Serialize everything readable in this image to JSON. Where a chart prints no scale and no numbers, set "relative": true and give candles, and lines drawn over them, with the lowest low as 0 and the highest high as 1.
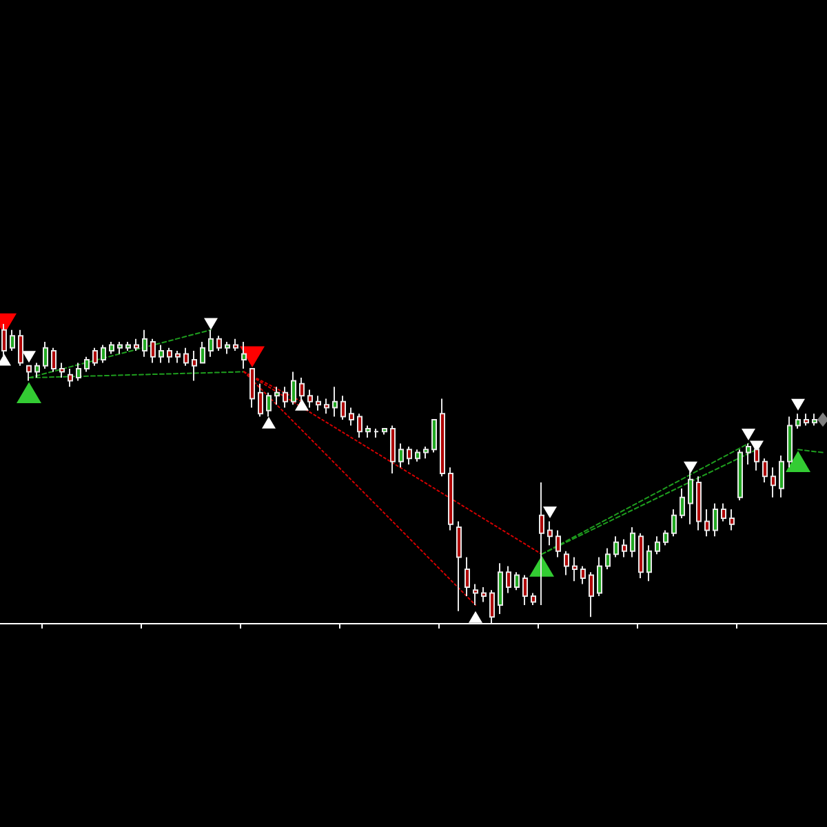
{
  "chart_data": {
    "type": "candlestick",
    "relative": true,
    "categories": [
      null,
      null,
      null,
      null,
      null,
      null,
      null,
      null,
      null,
      null,
      null,
      null,
      null,
      null,
      null,
      null,
      null,
      null,
      null,
      null,
      null,
      null,
      null,
      null,
      null,
      null,
      null,
      null,
      null,
      null,
      null,
      null,
      null,
      null,
      null,
      null,
      null,
      null,
      null,
      null,
      null,
      null,
      null,
      null,
      null,
      null,
      null,
      null,
      null,
      null,
      null,
      null,
      null,
      null,
      null,
      null,
      null,
      null,
      null,
      null,
      null,
      null,
      null,
      null,
      null,
      null,
      null,
      null,
      null,
      null,
      null,
      null,
      null,
      null,
      null,
      null,
      null,
      null,
      null,
      null,
      null,
      null,
      null,
      null,
      null,
      null,
      null,
      null,
      null,
      null,
      null,
      null,
      null,
      null,
      null,
      null,
      null,
      null,
      null,
      null
    ],
    "ohlc": [
      [
        0.98,
        1.0,
        0.89,
        0.91
      ],
      [
        0.92,
        0.98,
        0.91,
        0.96
      ],
      [
        0.96,
        0.98,
        0.86,
        0.87
      ],
      [
        0.86,
        0.86,
        0.81,
        0.84
      ],
      [
        0.84,
        0.87,
        0.82,
        0.86
      ],
      [
        0.86,
        0.94,
        0.85,
        0.92
      ],
      [
        0.91,
        0.92,
        0.84,
        0.85
      ],
      [
        0.85,
        0.87,
        0.82,
        0.84
      ],
      [
        0.83,
        0.85,
        0.79,
        0.81
      ],
      [
        0.82,
        0.87,
        0.81,
        0.85
      ],
      [
        0.85,
        0.89,
        0.84,
        0.88
      ],
      [
        0.91,
        0.92,
        0.86,
        0.87
      ],
      [
        0.88,
        0.93,
        0.87,
        0.92
      ],
      [
        0.91,
        0.94,
        0.9,
        0.93
      ],
      [
        0.92,
        0.94,
        0.9,
        0.93
      ],
      [
        0.92,
        0.94,
        0.91,
        0.93
      ],
      [
        0.93,
        0.95,
        0.91,
        0.92
      ],
      [
        0.91,
        0.98,
        0.89,
        0.95
      ],
      [
        0.94,
        0.95,
        0.87,
        0.89
      ],
      [
        0.89,
        0.93,
        0.87,
        0.91
      ],
      [
        0.91,
        0.92,
        0.87,
        0.89
      ],
      [
        0.9,
        0.91,
        0.87,
        0.89
      ],
      [
        0.9,
        0.92,
        0.86,
        0.87
      ],
      [
        0.88,
        0.91,
        0.81,
        0.86
      ],
      [
        0.87,
        0.94,
        0.87,
        0.92
      ],
      [
        0.91,
        0.98,
        0.89,
        0.95
      ],
      [
        0.95,
        0.96,
        0.91,
        0.92
      ],
      [
        0.92,
        0.94,
        0.9,
        0.93
      ],
      [
        0.93,
        0.95,
        0.91,
        0.92
      ],
      [
        0.88,
        0.94,
        0.85,
        0.9
      ],
      [
        0.85,
        0.85,
        0.72,
        0.75
      ],
      [
        0.77,
        0.8,
        0.69,
        0.7
      ],
      [
        0.71,
        0.77,
        0.69,
        0.76
      ],
      [
        0.76,
        0.79,
        0.73,
        0.77
      ],
      [
        0.77,
        0.79,
        0.72,
        0.74
      ],
      [
        0.74,
        0.84,
        0.73,
        0.81
      ],
      [
        0.8,
        0.82,
        0.74,
        0.76
      ],
      [
        0.76,
        0.78,
        0.72,
        0.74
      ],
      [
        0.74,
        0.76,
        0.71,
        0.73
      ],
      [
        0.73,
        0.75,
        0.7,
        0.72
      ],
      [
        0.72,
        0.79,
        0.69,
        0.74
      ],
      [
        0.74,
        0.76,
        0.68,
        0.69
      ],
      [
        0.7,
        0.72,
        0.66,
        0.68
      ],
      [
        0.69,
        0.7,
        0.62,
        0.64
      ],
      [
        0.64,
        0.66,
        0.62,
        0.65
      ],
      [
        0.64,
        0.65,
        0.62,
        0.64
      ],
      [
        0.64,
        0.65,
        0.63,
        0.65
      ],
      [
        0.65,
        0.66,
        0.5,
        0.54
      ],
      [
        0.54,
        0.6,
        0.52,
        0.58
      ],
      [
        0.58,
        0.59,
        0.53,
        0.55
      ],
      [
        0.55,
        0.58,
        0.54,
        0.57
      ],
      [
        0.57,
        0.59,
        0.55,
        0.58
      ],
      [
        0.58,
        0.68,
        0.57,
        0.68
      ],
      [
        0.7,
        0.75,
        0.49,
        0.5
      ],
      [
        0.5,
        0.52,
        0.31,
        0.33
      ],
      [
        0.32,
        0.34,
        0.04,
        0.22
      ],
      [
        0.18,
        0.22,
        0.09,
        0.12
      ],
      [
        0.11,
        0.13,
        0.06,
        0.1
      ],
      [
        0.1,
        0.12,
        0.07,
        0.09
      ],
      [
        0.1,
        0.11,
        0.0,
        0.02
      ],
      [
        0.06,
        0.2,
        0.03,
        0.17
      ],
      [
        0.17,
        0.19,
        0.1,
        0.12
      ],
      [
        0.12,
        0.17,
        0.11,
        0.16
      ],
      [
        0.15,
        0.16,
        0.06,
        0.09
      ],
      [
        0.09,
        0.1,
        0.06,
        0.07
      ],
      [
        0.36,
        0.47,
        0.06,
        0.3
      ],
      [
        0.31,
        0.34,
        0.26,
        0.29
      ],
      [
        0.29,
        0.31,
        0.22,
        0.24
      ],
      [
        0.23,
        0.24,
        0.16,
        0.19
      ],
      [
        0.19,
        0.22,
        0.14,
        0.18
      ],
      [
        0.18,
        0.19,
        0.13,
        0.15
      ],
      [
        0.16,
        0.17,
        0.02,
        0.09
      ],
      [
        0.1,
        0.22,
        0.09,
        0.19
      ],
      [
        0.19,
        0.25,
        0.18,
        0.23
      ],
      [
        0.23,
        0.29,
        0.22,
        0.27
      ],
      [
        0.26,
        0.28,
        0.22,
        0.24
      ],
      [
        0.24,
        0.32,
        0.22,
        0.3
      ],
      [
        0.29,
        0.3,
        0.15,
        0.17
      ],
      [
        0.17,
        0.26,
        0.14,
        0.24
      ],
      [
        0.24,
        0.29,
        0.23,
        0.27
      ],
      [
        0.27,
        0.31,
        0.26,
        0.3
      ],
      [
        0.3,
        0.38,
        0.29,
        0.36
      ],
      [
        0.36,
        0.45,
        0.35,
        0.42
      ],
      [
        0.4,
        0.51,
        0.33,
        0.48
      ],
      [
        0.47,
        0.49,
        0.31,
        0.34
      ],
      [
        0.34,
        0.38,
        0.29,
        0.31
      ],
      [
        0.31,
        0.4,
        0.29,
        0.38
      ],
      [
        0.38,
        0.4,
        0.34,
        0.35
      ],
      [
        0.35,
        0.38,
        0.31,
        0.33
      ],
      [
        0.42,
        0.58,
        0.41,
        0.57
      ],
      [
        0.57,
        0.6,
        0.53,
        0.59
      ],
      [
        0.58,
        0.58,
        0.51,
        0.54
      ],
      [
        0.54,
        0.55,
        0.47,
        0.49
      ],
      [
        0.49,
        0.52,
        0.42,
        0.46
      ],
      [
        0.45,
        0.56,
        0.42,
        0.54
      ],
      [
        0.54,
        0.69,
        0.52,
        0.66
      ],
      [
        0.66,
        0.7,
        0.65,
        0.68
      ],
      [
        0.68,
        0.7,
        0.66,
        0.67
      ],
      [
        0.67,
        0.7,
        0.66,
        0.68
      ],
      null
    ],
    "series": [
      {
        "type": "line",
        "color": "#1e9e1e",
        "line_style": "dashed",
        "marker": "none",
        "values": [
          null,
          null,
          null,
          0.82,
          null,
          null,
          null,
          null,
          null,
          null,
          null,
          null,
          null,
          null,
          null,
          null,
          null,
          null,
          null,
          null,
          null,
          null,
          null,
          null,
          null,
          0.98,
          null,
          null,
          null,
          null,
          null,
          null,
          null,
          null,
          null,
          null,
          null,
          null,
          null,
          null,
          null,
          null,
          null,
          null,
          null,
          null,
          null,
          null,
          null,
          null,
          null,
          null,
          null,
          null,
          null,
          null,
          null,
          null,
          null,
          null,
          null,
          null,
          null,
          null,
          null,
          null,
          null,
          null,
          null,
          null,
          null,
          null,
          null,
          null,
          null,
          null,
          null,
          null,
          null,
          null,
          null,
          null,
          null,
          null,
          null,
          null,
          null,
          null,
          null,
          null,
          null,
          null,
          null,
          null,
          null,
          null,
          null,
          null,
          null,
          null
        ]
      },
      {
        "type": "line",
        "color": "#1e9e1e",
        "line_style": "dashed",
        "marker": "none",
        "values": [
          null,
          null,
          null,
          0.82,
          null,
          null,
          null,
          null,
          null,
          null,
          null,
          null,
          null,
          null,
          null,
          null,
          null,
          null,
          null,
          null,
          null,
          null,
          null,
          null,
          null,
          null,
          null,
          null,
          null,
          0.84,
          null,
          null,
          null,
          null,
          null,
          null,
          null,
          null,
          null,
          null,
          null,
          null,
          null,
          null,
          null,
          null,
          null,
          null,
          null,
          null,
          null,
          null,
          null,
          null,
          null,
          null,
          null,
          null,
          null,
          null,
          null,
          null,
          null,
          null,
          null,
          null,
          null,
          null,
          null,
          null,
          null,
          null,
          null,
          null,
          null,
          null,
          null,
          null,
          null,
          null,
          null,
          null,
          null,
          null,
          null,
          null,
          null,
          null,
          null,
          null,
          null,
          null,
          null,
          null,
          null,
          null,
          null,
          null,
          null,
          null
        ]
      },
      {
        "type": "line",
        "color": "#d40000",
        "line_style": "dotted",
        "marker": "none",
        "values": [
          null,
          null,
          null,
          null,
          null,
          null,
          null,
          null,
          null,
          null,
          null,
          null,
          null,
          null,
          null,
          null,
          null,
          null,
          null,
          null,
          null,
          null,
          null,
          null,
          null,
          null,
          null,
          null,
          null,
          0.84,
          null,
          null,
          null,
          null,
          null,
          null,
          null,
          null,
          null,
          null,
          null,
          null,
          null,
          null,
          null,
          null,
          null,
          null,
          null,
          null,
          null,
          null,
          null,
          null,
          null,
          null,
          null,
          null,
          null,
          null,
          null,
          null,
          null,
          null,
          null,
          0.23,
          null,
          null,
          null,
          null,
          null,
          null,
          null,
          null,
          null,
          null,
          null,
          null,
          null,
          null,
          null,
          null,
          null,
          null,
          null,
          null,
          null,
          null,
          null,
          null,
          null,
          null,
          null,
          null,
          null,
          null,
          null,
          null,
          null,
          null
        ]
      },
      {
        "type": "line",
        "color": "#d40000",
        "line_style": "dotted",
        "marker": "none",
        "values": [
          null,
          null,
          null,
          null,
          null,
          null,
          null,
          null,
          null,
          null,
          null,
          null,
          null,
          null,
          null,
          null,
          null,
          null,
          null,
          null,
          null,
          null,
          null,
          null,
          null,
          null,
          null,
          null,
          null,
          0.84,
          null,
          null,
          null,
          null,
          null,
          null,
          null,
          null,
          null,
          null,
          null,
          null,
          null,
          null,
          null,
          null,
          null,
          null,
          null,
          null,
          null,
          null,
          null,
          null,
          null,
          null,
          null,
          0.06,
          null,
          null,
          null,
          null,
          null,
          null,
          null,
          null,
          null,
          null,
          null,
          null,
          null,
          null,
          null,
          null,
          null,
          null,
          null,
          null,
          null,
          null,
          null,
          null,
          null,
          null,
          null,
          null,
          null,
          null,
          null,
          null,
          null,
          null,
          null,
          null,
          null,
          null,
          null,
          null,
          null,
          null
        ]
      },
      {
        "type": "line",
        "color": "#d40000",
        "line_style": "dotted",
        "marker": "none",
        "values": [
          null,
          null,
          null,
          null,
          null,
          null,
          null,
          null,
          null,
          null,
          null,
          null,
          null,
          null,
          null,
          null,
          null,
          null,
          null,
          null,
          null,
          null,
          null,
          null,
          null,
          null,
          null,
          null,
          null,
          0.84,
          null,
          null,
          null,
          null,
          null,
          null,
          0.74,
          null,
          null,
          null,
          null,
          null,
          null,
          null,
          null,
          null,
          null,
          null,
          null,
          null,
          null,
          null,
          null,
          null,
          null,
          null,
          null,
          null,
          null,
          null,
          null,
          null,
          null,
          null,
          null,
          null,
          null,
          null,
          null,
          null,
          null,
          null,
          null,
          null,
          null,
          null,
          null,
          null,
          null,
          null,
          null,
          null,
          null,
          null,
          null,
          null,
          null,
          null,
          null,
          null,
          null,
          null,
          null,
          null,
          null,
          null,
          null,
          null,
          null,
          null
        ]
      },
      {
        "type": "line",
        "color": "#1e9e1e",
        "line_style": "dashed",
        "marker": "none",
        "values": [
          null,
          null,
          null,
          null,
          null,
          null,
          null,
          null,
          null,
          null,
          null,
          null,
          null,
          null,
          null,
          null,
          null,
          null,
          null,
          null,
          null,
          null,
          null,
          null,
          null,
          null,
          null,
          null,
          null,
          null,
          null,
          null,
          null,
          null,
          null,
          null,
          null,
          null,
          null,
          null,
          null,
          null,
          null,
          null,
          null,
          null,
          null,
          null,
          null,
          null,
          null,
          null,
          null,
          null,
          null,
          null,
          null,
          null,
          null,
          null,
          null,
          null,
          null,
          null,
          null,
          0.23,
          null,
          null,
          null,
          null,
          null,
          null,
          null,
          null,
          null,
          null,
          null,
          null,
          null,
          null,
          null,
          null,
          null,
          null,
          null,
          null,
          null,
          null,
          null,
          null,
          0.6,
          null,
          null,
          null,
          null,
          null,
          null,
          null,
          null,
          null
        ]
      },
      {
        "type": "line",
        "color": "#1e9e1e",
        "line_style": "dashed",
        "marker": "none",
        "values": [
          null,
          null,
          null,
          null,
          null,
          null,
          null,
          null,
          null,
          null,
          null,
          null,
          null,
          null,
          null,
          null,
          null,
          null,
          null,
          null,
          null,
          null,
          null,
          null,
          null,
          null,
          null,
          null,
          null,
          null,
          null,
          null,
          null,
          null,
          null,
          null,
          null,
          null,
          null,
          null,
          null,
          null,
          null,
          null,
          null,
          null,
          null,
          null,
          null,
          null,
          null,
          null,
          null,
          null,
          null,
          null,
          null,
          null,
          null,
          null,
          null,
          null,
          null,
          null,
          null,
          0.23,
          null,
          null,
          null,
          null,
          null,
          null,
          null,
          null,
          null,
          null,
          null,
          null,
          null,
          null,
          null,
          null,
          null,
          null,
          null,
          null,
          null,
          null,
          null,
          null,
          null,
          0.58,
          null,
          null,
          null,
          null,
          null,
          null,
          null,
          null
        ]
      },
      {
        "type": "line",
        "color": "#1e9e1e",
        "line_style": "dashed",
        "marker": "none",
        "values": [
          null,
          null,
          null,
          null,
          null,
          null,
          null,
          null,
          null,
          null,
          null,
          null,
          null,
          null,
          null,
          null,
          null,
          null,
          null,
          null,
          null,
          null,
          null,
          null,
          null,
          null,
          null,
          null,
          null,
          null,
          null,
          null,
          null,
          null,
          null,
          null,
          null,
          null,
          null,
          null,
          null,
          null,
          null,
          null,
          null,
          null,
          null,
          null,
          null,
          null,
          null,
          null,
          null,
          null,
          null,
          null,
          null,
          null,
          null,
          null,
          null,
          null,
          null,
          null,
          null,
          null,
          null,
          null,
          null,
          null,
          null,
          null,
          null,
          null,
          null,
          null,
          null,
          null,
          null,
          null,
          null,
          null,
          null,
          null,
          null,
          null,
          null,
          null,
          null,
          null,
          null,
          null,
          null,
          null,
          null,
          null,
          0.58,
          null,
          null,
          0.57
        ]
      },
      {
        "type": "scatter",
        "color": "#ff0000",
        "marker": "triangle",
        "values": [
          1.0,
          null,
          null,
          null,
          null,
          null,
          null,
          null,
          null,
          null,
          null,
          null,
          null,
          null,
          null,
          null,
          null,
          null,
          null,
          null,
          null,
          null,
          null,
          null,
          null,
          null,
          null,
          null,
          null,
          null,
          0.89,
          null,
          null,
          null,
          null,
          null,
          null,
          null,
          null,
          null,
          null,
          null,
          null,
          null,
          null,
          null,
          null,
          null,
          null,
          null,
          null,
          null,
          null,
          null,
          null,
          null,
          null,
          null,
          null,
          null,
          null,
          null,
          null,
          null,
          null,
          null,
          null,
          null,
          null,
          null,
          null,
          null,
          null,
          null,
          null,
          null,
          null,
          null,
          null,
          null,
          null,
          null,
          null,
          null,
          null,
          null,
          null,
          null,
          null,
          null,
          null,
          null,
          null,
          null,
          null,
          null,
          null,
          null,
          null,
          null
        ]
      },
      {
        "type": "scatter",
        "color": "#33cc33",
        "marker": "triangle",
        "values": [
          null,
          null,
          null,
          0.77,
          null,
          null,
          null,
          null,
          null,
          null,
          null,
          null,
          null,
          null,
          null,
          null,
          null,
          null,
          null,
          null,
          null,
          null,
          null,
          null,
          null,
          null,
          null,
          null,
          null,
          null,
          null,
          null,
          null,
          null,
          null,
          null,
          null,
          null,
          null,
          null,
          null,
          null,
          null,
          null,
          null,
          null,
          null,
          null,
          null,
          null,
          null,
          null,
          null,
          null,
          null,
          null,
          null,
          null,
          null,
          null,
          null,
          null,
          null,
          null,
          null,
          0.19,
          null,
          null,
          null,
          null,
          null,
          null,
          null,
          null,
          null,
          null,
          null,
          null,
          null,
          null,
          null,
          null,
          null,
          null,
          null,
          null,
          null,
          null,
          null,
          null,
          null,
          null,
          null,
          null,
          null,
          null,
          0.54,
          null,
          null,
          null
        ]
      },
      {
        "type": "scatter",
        "color": "#ffffff",
        "marker": "triangle",
        "values": [
          0.88,
          null,
          null,
          0.89,
          null,
          null,
          null,
          null,
          null,
          null,
          null,
          null,
          null,
          null,
          null,
          null,
          null,
          null,
          null,
          null,
          null,
          null,
          null,
          null,
          null,
          1.0,
          null,
          null,
          null,
          null,
          null,
          null,
          0.67,
          null,
          null,
          null,
          0.73,
          null,
          null,
          null,
          null,
          null,
          null,
          null,
          null,
          null,
          null,
          null,
          null,
          null,
          null,
          null,
          null,
          null,
          null,
          null,
          null,
          0.02,
          null,
          null,
          null,
          null,
          null,
          null,
          null,
          null,
          0.37,
          null,
          null,
          null,
          null,
          null,
          null,
          null,
          null,
          null,
          null,
          null,
          null,
          null,
          null,
          null,
          null,
          0.52,
          null,
          null,
          null,
          null,
          null,
          null,
          0.63,
          0.59,
          null,
          null,
          null,
          null,
          0.73,
          null,
          null,
          null
        ]
      },
      {
        "type": "scatter",
        "color": "#7f7f7f",
        "marker": "diamond",
        "values": [
          null,
          null,
          null,
          null,
          null,
          null,
          null,
          null,
          null,
          null,
          null,
          null,
          null,
          null,
          null,
          null,
          null,
          null,
          null,
          null,
          null,
          null,
          null,
          null,
          null,
          null,
          null,
          null,
          null,
          null,
          null,
          null,
          null,
          null,
          null,
          null,
          null,
          null,
          null,
          null,
          null,
          null,
          null,
          null,
          null,
          null,
          null,
          null,
          null,
          null,
          null,
          null,
          null,
          null,
          null,
          null,
          null,
          null,
          null,
          null,
          null,
          null,
          null,
          null,
          null,
          null,
          null,
          null,
          null,
          null,
          null,
          null,
          null,
          null,
          null,
          null,
          null,
          null,
          null,
          null,
          null,
          null,
          null,
          null,
          null,
          null,
          null,
          null,
          null,
          null,
          null,
          null,
          null,
          null,
          null,
          null,
          null,
          null,
          null,
          0.68
        ]
      }
    ]
  }
}
